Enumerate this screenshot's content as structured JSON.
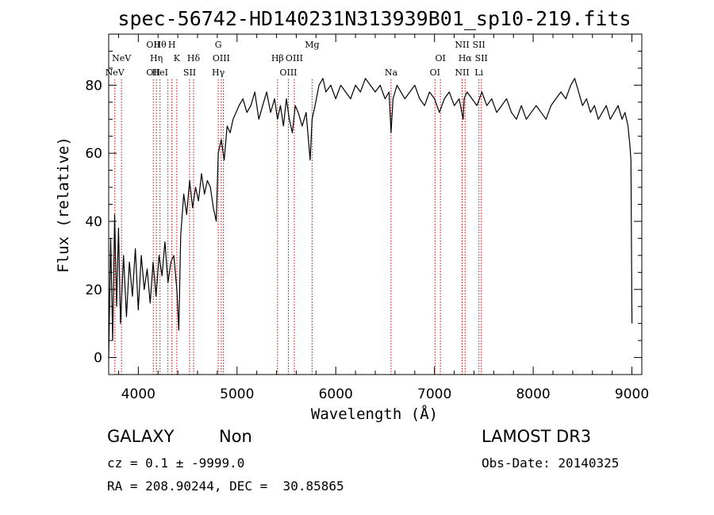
{
  "chart_data": {
    "type": "line",
    "title": "spec-56742-HD140231N313939B01_sp10-219.fits",
    "xlabel": "Wavelength (Å)",
    "ylabel": "Flux (relative)",
    "xlim": [
      3700,
      9100
    ],
    "ylim": [
      -5,
      95
    ],
    "x_ticks": [
      4000,
      5000,
      6000,
      7000,
      8000,
      9000
    ],
    "y_ticks": [
      0,
      20,
      40,
      60,
      80
    ],
    "grid": false,
    "series": [
      {
        "x": [
          3700,
          3720,
          3740,
          3760,
          3780,
          3800,
          3820,
          3850,
          3880,
          3910,
          3940,
          3970,
          4000,
          4030,
          4060,
          4090,
          4120,
          4150,
          4180,
          4210,
          4240,
          4270,
          4300,
          4330,
          4360,
          4390,
          4410,
          4430,
          4460,
          4490,
          4520,
          4550,
          4580,
          4610,
          4640,
          4670,
          4700,
          4730,
          4760,
          4790,
          4810,
          4840,
          4870,
          4900,
          4930,
          4960,
          4990,
          5020,
          5060,
          5100,
          5140,
          5180,
          5220,
          5260,
          5300,
          5340,
          5380,
          5410,
          5440,
          5470,
          5500,
          5530,
          5560,
          5590,
          5620,
          5660,
          5700,
          5740,
          5760,
          5790,
          5830,
          5870,
          5900,
          5950,
          6000,
          6050,
          6100,
          6150,
          6200,
          6250,
          6300,
          6350,
          6400,
          6450,
          6500,
          6540,
          6560,
          6580,
          6620,
          6660,
          6700,
          6750,
          6800,
          6850,
          6900,
          6950,
          7000,
          7050,
          7100,
          7150,
          7200,
          7250,
          7290,
          7300,
          7330,
          7380,
          7430,
          7480,
          7530,
          7580,
          7630,
          7680,
          7730,
          7780,
          7830,
          7880,
          7930,
          7980,
          8030,
          8080,
          8130,
          8180,
          8230,
          8280,
          8330,
          8380,
          8420,
          8460,
          8500,
          8540,
          8580,
          8620,
          8660,
          8700,
          8740,
          8780,
          8820,
          8860,
          8900,
          8930,
          8960,
          8980,
          8990,
          9000
        ],
        "y": [
          0,
          35,
          5,
          42,
          15,
          38,
          10,
          30,
          12,
          28,
          18,
          32,
          14,
          30,
          20,
          26,
          16,
          28,
          18,
          30,
          24,
          34,
          22,
          28,
          30,
          20,
          8,
          36,
          48,
          42,
          52,
          44,
          50,
          46,
          54,
          48,
          52,
          50,
          44,
          40,
          60,
          64,
          58,
          68,
          66,
          70,
          72,
          74,
          76,
          72,
          74,
          78,
          70,
          74,
          78,
          72,
          76,
          70,
          74,
          68,
          76,
          70,
          66,
          74,
          72,
          68,
          72,
          58,
          70,
          74,
          80,
          82,
          78,
          80,
          76,
          80,
          78,
          76,
          80,
          78,
          82,
          80,
          78,
          80,
          76,
          78,
          66,
          76,
          80,
          78,
          76,
          78,
          80,
          76,
          74,
          78,
          76,
          72,
          76,
          78,
          74,
          76,
          70,
          76,
          78,
          76,
          74,
          78,
          74,
          76,
          72,
          74,
          76,
          72,
          70,
          74,
          70,
          72,
          74,
          72,
          70,
          74,
          76,
          78,
          76,
          80,
          82,
          78,
          74,
          76,
          72,
          74,
          70,
          72,
          74,
          70,
          72,
          74,
          70,
          72,
          68,
          62,
          58,
          10
        ]
      }
    ],
    "line_markers": [
      {
        "x": 3762,
        "top": "",
        "bottom": "NeV"
      },
      {
        "x": 3830,
        "top": "NeV",
        "bottom": ""
      },
      {
        "x": 4152,
        "top": "OII",
        "bottom": "OII"
      },
      {
        "x": 4183,
        "top": "Hη",
        "bottom": ""
      },
      {
        "x": 4220,
        "top": "Hθ",
        "bottom": "HeI"
      },
      {
        "x": 4300,
        "top": "",
        "bottom": ""
      },
      {
        "x": 4340,
        "top": "H",
        "bottom": ""
      },
      {
        "x": 4390,
        "top": "K",
        "bottom": ""
      },
      {
        "x": 4520,
        "top": "",
        "bottom": "SII"
      },
      {
        "x": 4560,
        "top": "Hδ",
        "bottom": ""
      },
      {
        "x": 4810,
        "top": "G",
        "bottom": "Hγ"
      },
      {
        "x": 4840,
        "top": "OIII",
        "bottom": ""
      },
      {
        "x": 4862,
        "top": "",
        "bottom": ""
      },
      {
        "x": 5410,
        "top": "Hβ",
        "bottom": ""
      },
      {
        "x": 5520,
        "top": "",
        "bottom": "OIII"
      },
      {
        "x": 5580,
        "top": "OIII",
        "bottom": ""
      },
      {
        "x": 5760,
        "top": "Mg",
        "bottom": ""
      },
      {
        "x": 6560,
        "top": "",
        "bottom": "Na"
      },
      {
        "x": 7005,
        "top": "",
        "bottom": "OI"
      },
      {
        "x": 7060,
        "top": "OI",
        "bottom": ""
      },
      {
        "x": 7280,
        "top": "NII",
        "bottom": "NII"
      },
      {
        "x": 7310,
        "top": "Hα",
        "bottom": ""
      },
      {
        "x": 7450,
        "top": "SII",
        "bottom": "Li"
      },
      {
        "x": 7475,
        "top": "SII",
        "bottom": ""
      }
    ],
    "colors": {
      "spectrum": "#000000",
      "markers": "#cc0000"
    }
  },
  "footer": {
    "classification": "GALAXY",
    "subclass": "Non",
    "survey": "LAMOST DR3",
    "redshift_line": "cz = 0.1 ± -9999.0",
    "obsdate_line": "Obs-Date: 20140325",
    "coords_line": "RA = 208.90244, DEC =  30.85865"
  }
}
